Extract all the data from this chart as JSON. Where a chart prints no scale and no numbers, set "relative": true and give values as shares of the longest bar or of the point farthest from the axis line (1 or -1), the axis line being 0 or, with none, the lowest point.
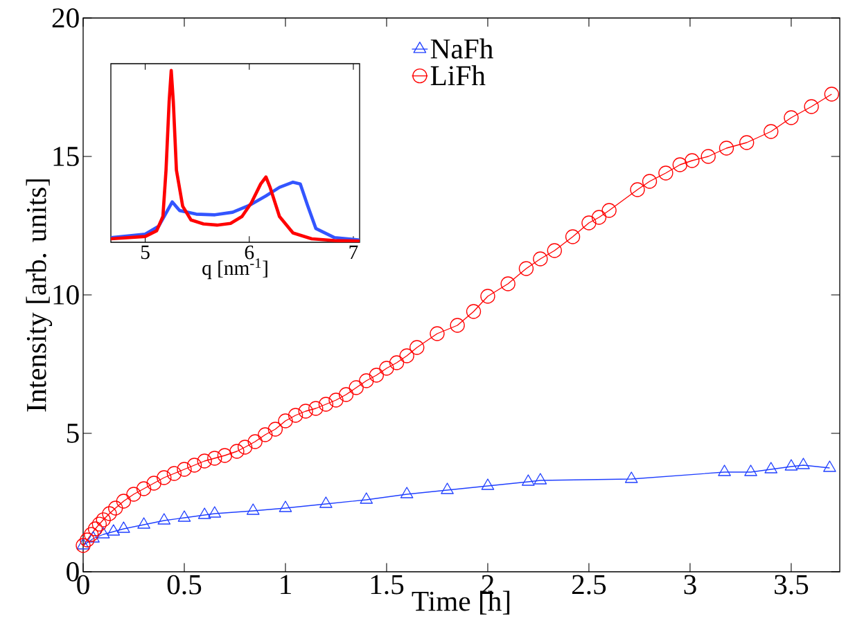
{
  "chart_data": [
    {
      "type": "line",
      "xlabel": "Time [h]",
      "ylabel": "Intensity [arb. units]",
      "xlim": [
        0,
        3.74
      ],
      "ylim": [
        0,
        20
      ],
      "xticks": [
        0,
        0.5,
        1,
        1.5,
        2,
        2.5,
        3,
        3.5
      ],
      "yticks": [
        0,
        5,
        10,
        15,
        20
      ],
      "legend": "top",
      "series": [
        {
          "name": "NaFh",
          "color": "#1f3fff",
          "marker": "triangle",
          "x": [
            0,
            0.05,
            0.1,
            0.15,
            0.2,
            0.3,
            0.4,
            0.5,
            0.6,
            0.65,
            0.84,
            1.0,
            1.2,
            1.4,
            1.6,
            1.8,
            2.0,
            2.2,
            2.26,
            2.71,
            3.17,
            3.3,
            3.4,
            3.5,
            3.56,
            3.69
          ],
          "values": [
            0.95,
            1.2,
            1.35,
            1.45,
            1.55,
            1.7,
            1.85,
            1.95,
            2.05,
            2.1,
            2.2,
            2.3,
            2.45,
            2.6,
            2.8,
            2.95,
            3.1,
            3.25,
            3.3,
            3.35,
            3.6,
            3.6,
            3.7,
            3.8,
            3.85,
            3.75
          ]
        },
        {
          "name": "LiFh",
          "color": "#ff0000",
          "marker": "circle",
          "x": [
            0,
            0.02,
            0.04,
            0.06,
            0.08,
            0.1,
            0.13,
            0.16,
            0.2,
            0.25,
            0.3,
            0.35,
            0.4,
            0.45,
            0.5,
            0.55,
            0.6,
            0.65,
            0.7,
            0.76,
            0.8,
            0.85,
            0.9,
            0.95,
            1.0,
            1.05,
            1.1,
            1.15,
            1.2,
            1.25,
            1.3,
            1.35,
            1.4,
            1.45,
            1.5,
            1.55,
            1.6,
            1.65,
            1.75,
            1.85,
            1.93,
            2.0,
            2.1,
            2.19,
            2.26,
            2.33,
            2.42,
            2.5,
            2.55,
            2.6,
            2.74,
            2.8,
            2.88,
            2.95,
            3.01,
            3.09,
            3.18,
            3.28,
            3.4,
            3.5,
            3.6,
            3.7
          ],
          "values": [
            0.95,
            1.15,
            1.35,
            1.55,
            1.72,
            1.88,
            2.1,
            2.3,
            2.55,
            2.8,
            3.0,
            3.2,
            3.4,
            3.55,
            3.7,
            3.85,
            4.0,
            4.1,
            4.2,
            4.35,
            4.5,
            4.7,
            4.95,
            5.15,
            5.45,
            5.65,
            5.8,
            5.9,
            6.05,
            6.2,
            6.4,
            6.65,
            6.9,
            7.1,
            7.35,
            7.55,
            7.8,
            8.1,
            8.6,
            8.9,
            9.4,
            9.95,
            10.4,
            10.95,
            11.3,
            11.6,
            12.1,
            12.6,
            12.8,
            13.05,
            13.8,
            14.1,
            14.4,
            14.7,
            14.85,
            15.0,
            15.3,
            15.5,
            15.9,
            16.4,
            16.8,
            17.25
          ]
        }
      ]
    },
    {
      "type": "line",
      "xlabel": "q [nm$^{-1}$]",
      "xlim": [
        4.67,
        7.06
      ],
      "xticks": [
        5,
        6,
        7
      ],
      "relative": true,
      "tick_labels": "x",
      "series": [
        {
          "color": "#3355ff",
          "x": [
            4.67,
            5.0,
            5.13,
            5.2,
            5.26,
            5.33,
            5.49,
            5.67,
            5.84,
            6.0,
            6.16,
            6.29,
            6.42,
            6.49,
            6.56,
            6.64,
            6.82,
            7.06
          ],
          "values": [
            0.027,
            0.047,
            0.094,
            0.17,
            0.235,
            0.185,
            0.164,
            0.16,
            0.175,
            0.215,
            0.27,
            0.32,
            0.35,
            0.34,
            0.215,
            0.08,
            0.027,
            0.013
          ]
        },
        {
          "color": "#ff0000",
          "x": [
            4.67,
            5.0,
            5.11,
            5.17,
            5.2,
            5.23,
            5.25,
            5.27,
            5.3,
            5.36,
            5.44,
            5.56,
            5.69,
            5.82,
            5.93,
            6.02,
            6.11,
            6.16,
            6.2,
            6.29,
            6.42,
            6.6,
            6.82,
            7.06
          ],
          "values": [
            0.02,
            0.034,
            0.067,
            0.15,
            0.42,
            0.82,
            1.0,
            0.82,
            0.42,
            0.21,
            0.13,
            0.107,
            0.1,
            0.11,
            0.15,
            0.23,
            0.34,
            0.38,
            0.32,
            0.15,
            0.054,
            0.02,
            0.01,
            0.007
          ]
        }
      ]
    }
  ]
}
